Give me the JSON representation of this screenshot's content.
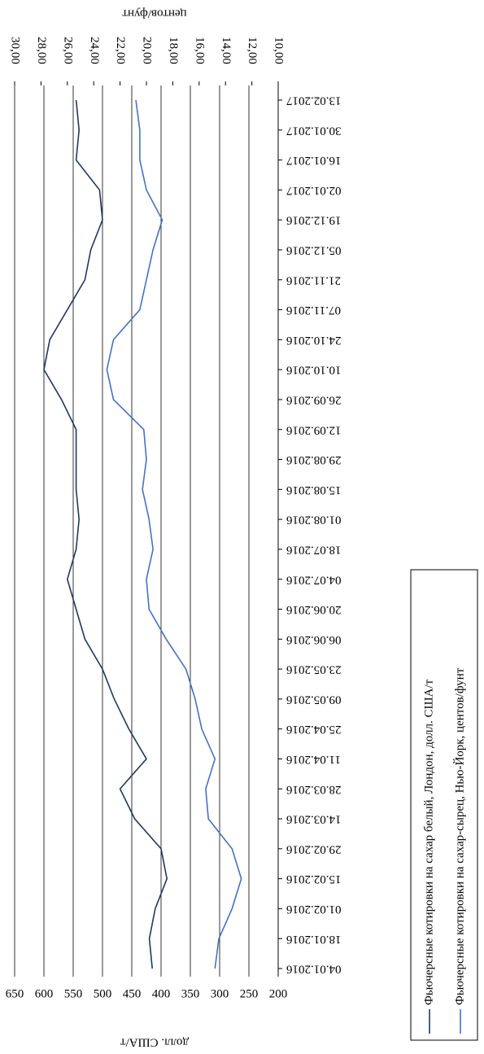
{
  "chart_data": {
    "type": "line",
    "y_label": "долл. США/т",
    "y2_label": "центов/фунт",
    "categories": [
      "04.01.2016",
      "18.01.2016",
      "01.02.2016",
      "15.02.2016",
      "29.02.2016",
      "14.03.2016",
      "28.03.2016",
      "11.04.2016",
      "25.04.2016",
      "09.05.2016",
      "23.05.2016",
      "06.06.2016",
      "20.06.2016",
      "04.07.2016",
      "18.07.2016",
      "01.08.2016",
      "15.08.2016",
      "29.08.2016",
      "12.09.2016",
      "26.09.2016",
      "10.10.2016",
      "24.10.2016",
      "07.11.2016",
      "21.11.2016",
      "05.12.2016",
      "19.12.2016",
      "02.01.2017",
      "16.01.2017",
      "30.01.2017",
      "13.02.2017"
    ],
    "series": [
      {
        "name": "Фьючерсные котировки на сахар белый, Лондон, долл. США/т",
        "color": "#1f3864",
        "values": [
          415,
          420,
          410,
          390,
          400,
          445,
          470,
          425,
          455,
          480,
          500,
          530,
          545,
          560,
          545,
          540,
          545,
          545,
          545,
          570,
          600,
          590,
          560,
          530,
          520,
          500,
          505,
          545,
          540,
          545
        ]
      },
      {
        "name": "Фьючерсные котировки на сахар-сырец, Нью-Йорк, центов/фунт",
        "color": "#4472c4",
        "axis": "y2",
        "values": [
          14.8,
          14.5,
          13.5,
          12.8,
          13.5,
          15.3,
          15.5,
          14.8,
          15.8,
          16.3,
          17.0,
          18.5,
          19.8,
          20.0,
          19.5,
          19.8,
          20.3,
          20.0,
          20.2,
          22.5,
          23.0,
          22.5,
          20.5,
          20.0,
          19.5,
          18.8,
          20.0,
          20.5,
          20.5,
          20.8
        ]
      }
    ],
    "ylim": [
      200,
      650
    ],
    "yticks": [
      200,
      250,
      300,
      350,
      400,
      450,
      500,
      550,
      600,
      650
    ],
    "y2lim": [
      10,
      30
    ],
    "y2ticks": [
      {
        "value": 10,
        "label": "10,00"
      },
      {
        "value": 12,
        "label": "12,00"
      },
      {
        "value": 14,
        "label": "14,00"
      },
      {
        "value": 16,
        "label": "16,00"
      },
      {
        "value": 18,
        "label": "18,00"
      },
      {
        "value": 20,
        "label": "20,00"
      },
      {
        "value": 22,
        "label": "22,00"
      },
      {
        "value": 24,
        "label": "24,00"
      },
      {
        "value": 26,
        "label": "26,00"
      },
      {
        "value": 28,
        "label": "28,00"
      },
      {
        "value": 30,
        "label": "30,00"
      }
    ],
    "grid": true
  }
}
